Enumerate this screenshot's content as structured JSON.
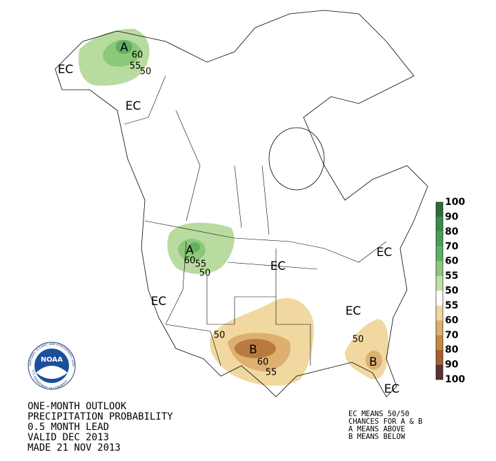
{
  "map_labels": [
    "EC",
    "A",
    "60",
    "55",
    "50",
    "EC",
    "A",
    "60",
    "55",
    "50",
    "EC",
    "EC",
    "EC",
    "EC",
    "50",
    "B",
    "60",
    "55",
    "50",
    "B",
    "EC"
  ],
  "legend": {
    "labels": [
      100,
      90,
      80,
      70,
      60,
      55,
      50,
      55,
      60,
      70,
      80,
      90,
      100
    ]
  },
  "logo": {
    "name": "NOAA",
    "ring": "NATIONAL OCEANIC AND ATMOSPHERIC ADMINISTRATION",
    "ring_bottom": "U.S. DEPARTMENT OF COMMERCE"
  },
  "title_lines": [
    "ONE-MONTH OUTLOOK",
    "PRECIPITATION PROBABILITY",
    "0.5 MONTH LEAD",
    "VALID DEC 2013",
    "MADE 21 NOV 2013"
  ],
  "notes": [
    "EC MEANS 50/50",
    "CHANCES FOR A & B",
    "A MEANS ABOVE",
    "B MEANS BELOW"
  ]
}
